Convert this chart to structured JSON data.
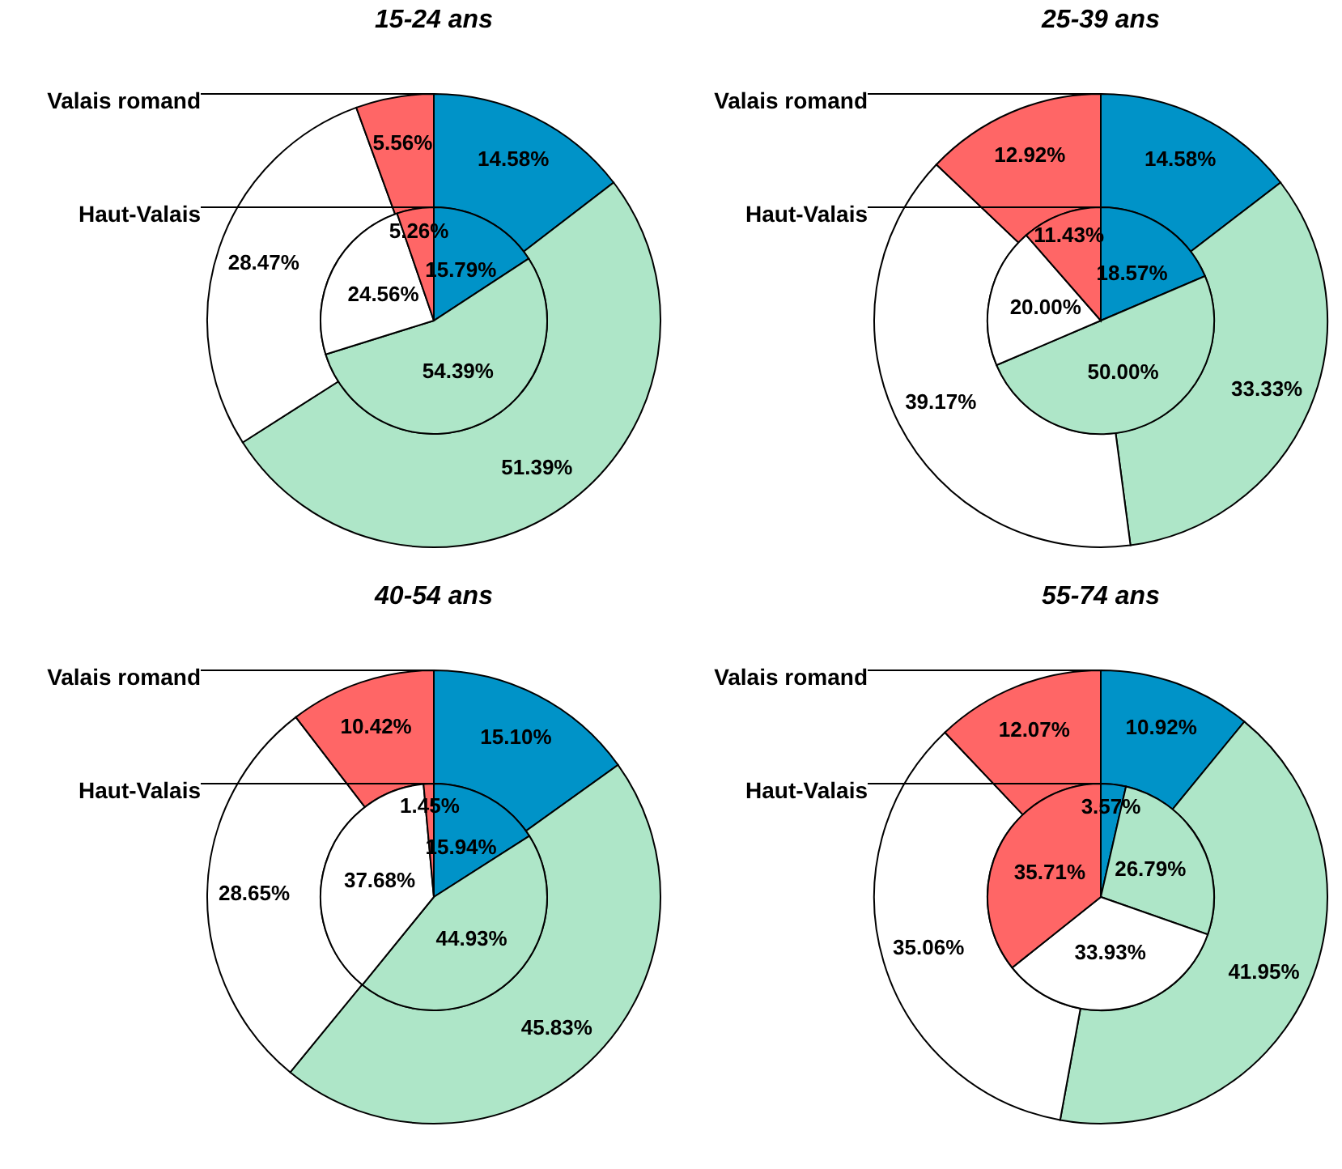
{
  "chart_data": [
    {
      "type": "donut",
      "title": "15-24 ans",
      "categories": [
        null,
        null,
        null,
        null
      ],
      "colors": [
        "#0093c8",
        "#aee6c8",
        "#ffffff",
        "#ff6666"
      ],
      "series": [
        {
          "name": "Valais romand",
          "values": [
            14.58,
            51.39,
            28.47,
            5.56
          ],
          "value_labels": [
            "14.58%",
            "51.39%",
            "28.47%",
            "5.56%"
          ]
        },
        {
          "name": "Haut-Valais",
          "values": [
            15.79,
            54.39,
            24.56,
            5.26
          ],
          "value_labels": [
            "15.79%",
            "54.39%",
            "24.56%",
            "5.26%"
          ]
        }
      ]
    },
    {
      "type": "donut",
      "title": "25-39 ans",
      "categories": [
        null,
        null,
        null,
        null
      ],
      "colors": [
        "#0093c8",
        "#aee6c8",
        "#ffffff",
        "#ff6666"
      ],
      "series": [
        {
          "name": "Valais romand",
          "values": [
            14.58,
            33.33,
            39.17,
            12.92
          ],
          "value_labels": [
            "14.58%",
            "33.33%",
            "39.17%",
            "12.92%"
          ]
        },
        {
          "name": "Haut-Valais",
          "values": [
            18.57,
            50.0,
            20.0,
            11.43
          ],
          "value_labels": [
            "18.57%",
            "50.00%",
            "20.00%",
            "11.43%"
          ]
        }
      ]
    },
    {
      "type": "donut",
      "title": "40-54 ans",
      "categories": [
        null,
        null,
        null,
        null
      ],
      "colors": [
        "#0093c8",
        "#aee6c8",
        "#ffffff",
        "#ff6666"
      ],
      "series": [
        {
          "name": "Valais romand",
          "values": [
            15.1,
            45.83,
            28.65,
            10.42
          ],
          "value_labels": [
            "15.10%",
            "45.83%",
            "28.65%",
            "10.42%"
          ]
        },
        {
          "name": "Haut-Valais",
          "values": [
            15.94,
            44.93,
            37.68,
            1.45
          ],
          "value_labels": [
            "15.94%",
            "44.93%",
            "37.68%",
            "1.45%"
          ]
        }
      ]
    },
    {
      "type": "donut",
      "title": "55-74 ans",
      "categories": [
        null,
        null,
        null,
        null
      ],
      "colors": [
        "#0093c8",
        "#aee6c8",
        "#ffffff",
        "#ff6666"
      ],
      "series": [
        {
          "name": "Valais romand",
          "values": [
            10.92,
            41.95,
            35.06,
            12.07
          ],
          "value_labels": [
            "10.92%",
            "41.95%",
            "35.06%",
            "12.07%"
          ]
        },
        {
          "name": "Haut-Valais",
          "values": [
            3.57,
            26.79,
            33.93,
            35.71
          ],
          "value_labels": [
            "3.57%",
            "26.79%",
            "33.93%",
            "35.71%"
          ]
        }
      ]
    }
  ]
}
